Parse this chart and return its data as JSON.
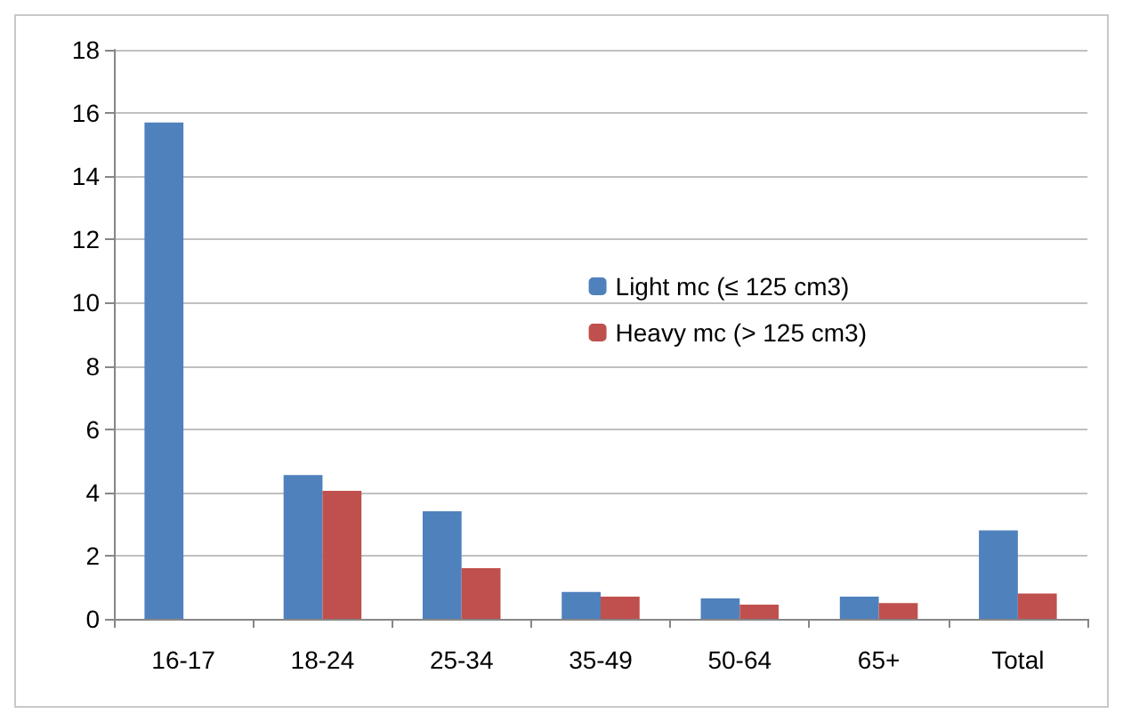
{
  "chart_data": {
    "type": "bar",
    "categories": [
      "16-17",
      "18-24",
      "25-34",
      "35-49",
      "50-64",
      "65+",
      "Total"
    ],
    "series": [
      {
        "name": "Light mc (≤ 125 cm3)",
        "color": "#4f81bd",
        "values": [
          15.7,
          4.55,
          3.4,
          0.85,
          0.65,
          0.7,
          2.8
        ]
      },
      {
        "name": "Heavy mc (> 125 cm3)",
        "color": "#c0504d",
        "values": [
          null,
          4.05,
          1.6,
          0.7,
          0.45,
          0.5,
          0.8
        ]
      }
    ],
    "ylim": [
      0,
      18
    ],
    "yticks": [
      0,
      2,
      4,
      6,
      8,
      10,
      12,
      14,
      16,
      18
    ],
    "grid": "y",
    "legend": "center"
  }
}
